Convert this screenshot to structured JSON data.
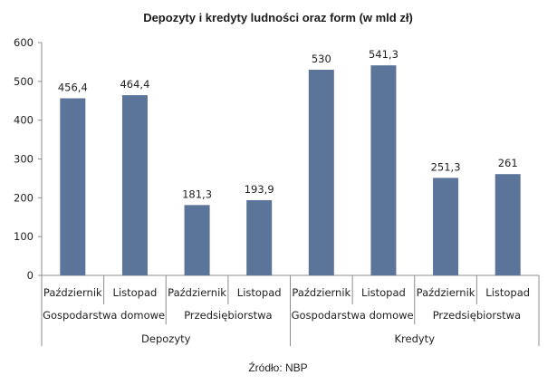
{
  "chart_data": {
    "type": "bar",
    "title": "Depozyty i kredyty ludności oraz form (w mld zł)",
    "categories": [
      "Październik",
      "Listopad",
      "Październik",
      "Listopad",
      "Październik",
      "Listopad",
      "Październik",
      "Listopad"
    ],
    "groups_level2": [
      "Gospodarstwa domowe",
      "Przedsiębiorstwa",
      "Gospodarstwa domowe",
      "Przedsiębiorstwa"
    ],
    "groups_level1": [
      "Depozyty",
      "Kredyty"
    ],
    "values": [
      456.4,
      464.4,
      181.3,
      193.9,
      530,
      541.3,
      251.3,
      261
    ],
    "value_labels": [
      "456,4",
      "464,4",
      "181,3",
      "193,9",
      "530",
      "541,3",
      "251,3",
      "261"
    ],
    "yticks": [
      "0",
      "100",
      "200",
      "300",
      "400",
      "500",
      "600"
    ],
    "ylim": [
      0,
      600
    ],
    "bar_color": "#5b7499",
    "grid": false,
    "legend": "none",
    "source": "Źródło: NBP"
  }
}
